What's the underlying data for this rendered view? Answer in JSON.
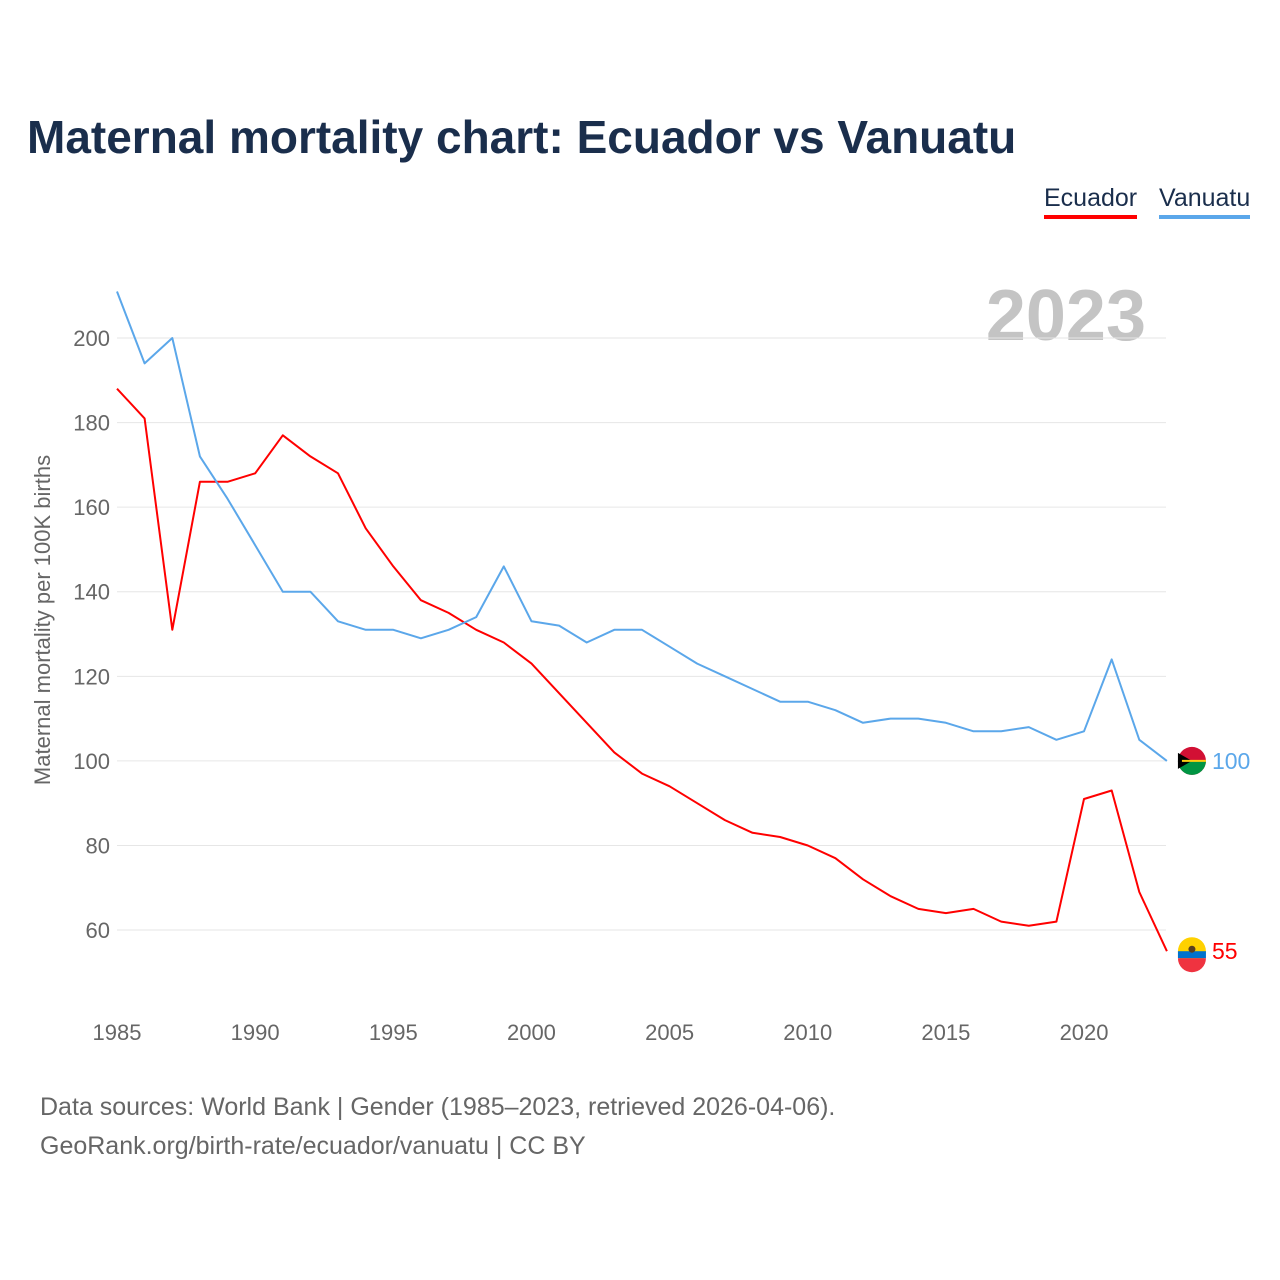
{
  "title": "Maternal mortality chart: Ecuador vs Vanuatu",
  "footer": {
    "line1": "Data sources: World Bank | Gender (1985–2023, retrieved 2026-04-06).",
    "line2": "GeoRank.org/birth-rate/ecuador/vanuatu | CC BY"
  },
  "chart_data": {
    "type": "line",
    "title": "Maternal mortality chart: Ecuador vs Vanuatu",
    "ylabel": "Maternal mortality per 100K births",
    "xlabel": "",
    "year_label": "2023",
    "xlim": [
      1985,
      2023
    ],
    "ylim": [
      45,
      215
    ],
    "xticks": [
      1985,
      1990,
      1995,
      2000,
      2005,
      2010,
      2015,
      2020
    ],
    "yticks": [
      60,
      80,
      100,
      120,
      140,
      160,
      180,
      200
    ],
    "grid": true,
    "legend_position": "top-right",
    "x": [
      1985,
      1986,
      1987,
      1988,
      1989,
      1990,
      1991,
      1992,
      1993,
      1994,
      1995,
      1996,
      1997,
      1998,
      1999,
      2000,
      2001,
      2002,
      2003,
      2004,
      2005,
      2006,
      2007,
      2008,
      2009,
      2010,
      2011,
      2012,
      2013,
      2014,
      2015,
      2016,
      2017,
      2018,
      2019,
      2020,
      2021,
      2022,
      2023
    ],
    "series": [
      {
        "name": "Ecuador",
        "color": "#ff0000",
        "end_label": "55",
        "values": [
          188,
          181,
          131,
          166,
          166,
          168,
          177,
          172,
          168,
          155,
          146,
          138,
          135,
          131,
          128,
          123,
          116,
          109,
          102,
          97,
          94,
          90,
          86,
          83,
          82,
          80,
          77,
          72,
          68,
          65,
          64,
          65,
          62,
          61,
          62,
          91,
          93,
          69,
          55
        ]
      },
      {
        "name": "Vanuatu",
        "color": "#5ba7ea",
        "end_label": "100",
        "values": [
          211,
          194,
          200,
          172,
          162,
          151,
          140,
          140,
          133,
          131,
          131,
          129,
          131,
          134,
          146,
          133,
          132,
          128,
          131,
          131,
          127,
          123,
          120,
          117,
          114,
          114,
          112,
          109,
          110,
          110,
          109,
          107,
          107,
          108,
          105,
          107,
          124,
          105,
          100
        ]
      }
    ]
  }
}
